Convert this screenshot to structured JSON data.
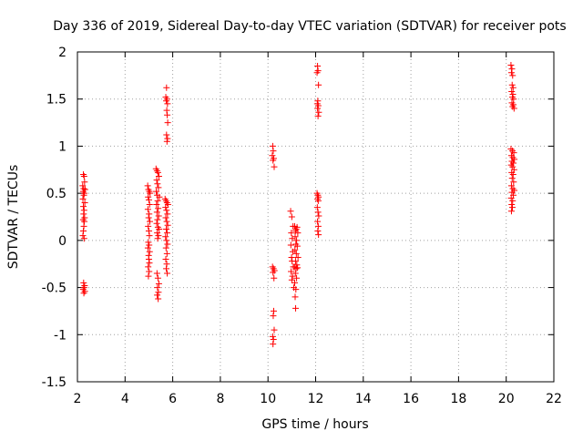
{
  "chart_data": {
    "type": "scatter",
    "title": "Day 336 of 2019, Sidereal Day-to-day VTEC variation (SDTVAR) for receiver pots",
    "xlabel": "GPS time / hours",
    "ylabel": "SDTVAR / TECUs",
    "xlim": [
      2,
      22
    ],
    "ylim": [
      -1.5,
      2
    ],
    "x_ticks": [
      2,
      4,
      6,
      8,
      10,
      12,
      14,
      16,
      18,
      20,
      22
    ],
    "y_ticks": [
      -1.5,
      -1,
      -0.5,
      0,
      0.5,
      1,
      1.5,
      2
    ],
    "x_tick_labels": [
      "2",
      "4",
      "6",
      "8",
      "10",
      "12",
      "14",
      "16",
      "18",
      "20",
      "22"
    ],
    "y_tick_labels": [
      "-1.5",
      "-1",
      "-0.5",
      "0",
      "0.5",
      "1",
      "1.5",
      "2"
    ],
    "grid": true,
    "marker": "plus",
    "series": [
      {
        "name": "SDTVAR",
        "color": "#ff0000",
        "points": [
          [
            2.25,
            0.7
          ],
          [
            2.28,
            0.68
          ],
          [
            2.3,
            0.62
          ],
          [
            2.22,
            0.58
          ],
          [
            2.26,
            0.55
          ],
          [
            2.32,
            0.54
          ],
          [
            2.24,
            0.52
          ],
          [
            2.29,
            0.5
          ],
          [
            2.27,
            0.48
          ],
          [
            2.23,
            0.44
          ],
          [
            2.31,
            0.4
          ],
          [
            2.25,
            0.36
          ],
          [
            2.28,
            0.32
          ],
          [
            2.26,
            0.28
          ],
          [
            2.3,
            0.24
          ],
          [
            2.24,
            0.22
          ],
          [
            2.29,
            0.2
          ],
          [
            2.27,
            0.15
          ],
          [
            2.25,
            0.1
          ],
          [
            2.23,
            0.05
          ],
          [
            2.28,
            0.02
          ],
          [
            2.26,
            -0.45
          ],
          [
            2.3,
            -0.48
          ],
          [
            2.28,
            -0.5
          ],
          [
            2.24,
            -0.52
          ],
          [
            2.31,
            -0.54
          ],
          [
            2.27,
            -0.56
          ],
          [
            4.95,
            0.58
          ],
          [
            4.98,
            0.54
          ],
          [
            5.02,
            0.52
          ],
          [
            5.05,
            0.5
          ],
          [
            4.97,
            0.46
          ],
          [
            5.0,
            0.43
          ],
          [
            5.03,
            0.38
          ],
          [
            4.96,
            0.33
          ],
          [
            5.01,
            0.28
          ],
          [
            4.99,
            0.24
          ],
          [
            5.04,
            0.2
          ],
          [
            4.97,
            0.15
          ],
          [
            5.0,
            0.1
          ],
          [
            5.02,
            0.05
          ],
          [
            4.98,
            -0.02
          ],
          [
            5.01,
            -0.05
          ],
          [
            4.96,
            -0.08
          ],
          [
            5.03,
            -0.12
          ],
          [
            4.99,
            -0.16
          ],
          [
            5.0,
            -0.2
          ],
          [
            5.02,
            -0.24
          ],
          [
            4.97,
            -0.28
          ],
          [
            5.01,
            -0.33
          ],
          [
            4.98,
            -0.38
          ],
          [
            5.3,
            0.76
          ],
          [
            5.34,
            0.74
          ],
          [
            5.38,
            0.72
          ],
          [
            5.42,
            0.68
          ],
          [
            5.33,
            0.64
          ],
          [
            5.36,
            0.6
          ],
          [
            5.4,
            0.56
          ],
          [
            5.31,
            0.52
          ],
          [
            5.35,
            0.48
          ],
          [
            5.44,
            0.46
          ],
          [
            5.37,
            0.42
          ],
          [
            5.32,
            0.38
          ],
          [
            5.39,
            0.34
          ],
          [
            5.34,
            0.3
          ],
          [
            5.41,
            0.26
          ],
          [
            5.36,
            0.22
          ],
          [
            5.33,
            0.18
          ],
          [
            5.38,
            0.14
          ],
          [
            5.43,
            0.12
          ],
          [
            5.35,
            0.08
          ],
          [
            5.4,
            0.05
          ],
          [
            5.37,
            0.02
          ],
          [
            5.34,
            -0.35
          ],
          [
            5.38,
            -0.4
          ],
          [
            5.42,
            -0.46
          ],
          [
            5.36,
            -0.5
          ],
          [
            5.4,
            -0.55
          ],
          [
            5.35,
            -0.58
          ],
          [
            5.39,
            -0.62
          ],
          [
            5.68,
            0.44
          ],
          [
            5.72,
            0.42
          ],
          [
            5.76,
            0.4
          ],
          [
            5.8,
            0.38
          ],
          [
            5.7,
            0.35
          ],
          [
            5.74,
            0.32
          ],
          [
            5.78,
            0.28
          ],
          [
            5.71,
            0.24
          ],
          [
            5.75,
            0.2
          ],
          [
            5.79,
            0.16
          ],
          [
            5.73,
            0.12
          ],
          [
            5.77,
            0.08
          ],
          [
            5.7,
            0.04
          ],
          [
            5.74,
            0.0
          ],
          [
            5.78,
            -0.04
          ],
          [
            5.72,
            -0.08
          ],
          [
            5.76,
            -0.14
          ],
          [
            5.71,
            -0.2
          ],
          [
            5.75,
            -0.25
          ],
          [
            5.73,
            -0.3
          ],
          [
            5.77,
            -0.35
          ],
          [
            5.74,
            1.62
          ],
          [
            5.71,
            1.52
          ],
          [
            5.76,
            1.5
          ],
          [
            5.73,
            1.48
          ],
          [
            5.78,
            1.45
          ],
          [
            5.75,
            1.38
          ],
          [
            5.77,
            1.33
          ],
          [
            5.79,
            1.25
          ],
          [
            5.74,
            1.12
          ],
          [
            5.78,
            1.08
          ],
          [
            5.76,
            1.05
          ],
          [
            10.2,
            1.0
          ],
          [
            10.22,
            0.95
          ],
          [
            10.18,
            0.9
          ],
          [
            10.24,
            0.87
          ],
          [
            10.21,
            0.85
          ],
          [
            10.26,
            0.78
          ],
          [
            10.19,
            -0.28
          ],
          [
            10.23,
            -0.3
          ],
          [
            10.27,
            -0.32
          ],
          [
            10.21,
            -0.34
          ],
          [
            10.25,
            -0.4
          ],
          [
            10.24,
            -0.75
          ],
          [
            10.22,
            -0.8
          ],
          [
            10.26,
            -0.95
          ],
          [
            10.2,
            -1.02
          ],
          [
            10.23,
            -1.05
          ],
          [
            10.21,
            -1.1
          ],
          [
            10.95,
            0.31
          ],
          [
            11.0,
            0.25
          ],
          [
            11.05,
            0.15
          ],
          [
            10.98,
            0.08
          ],
          [
            11.02,
            0.02
          ],
          [
            10.96,
            -0.05
          ],
          [
            11.04,
            -0.12
          ],
          [
            10.99,
            -0.18
          ],
          [
            11.01,
            -0.22
          ],
          [
            11.06,
            -0.28
          ],
          [
            10.97,
            -0.33
          ],
          [
            11.03,
            -0.38
          ],
          [
            11.0,
            -0.42
          ],
          [
            11.08,
            -0.5
          ],
          [
            11.12,
            0.15
          ],
          [
            11.15,
            0.1
          ],
          [
            11.18,
            0.12
          ],
          [
            11.22,
            0.14
          ],
          [
            11.25,
            0.08
          ],
          [
            11.14,
            0.04
          ],
          [
            11.2,
            0.0
          ],
          [
            11.17,
            -0.04
          ],
          [
            11.23,
            -0.06
          ],
          [
            11.13,
            -0.1
          ],
          [
            11.19,
            -0.14
          ],
          [
            11.26,
            -0.18
          ],
          [
            11.16,
            -0.22
          ],
          [
            11.21,
            -0.26
          ],
          [
            11.11,
            -0.28
          ],
          [
            11.18,
            -0.3
          ],
          [
            11.24,
            -0.29
          ],
          [
            11.15,
            -0.35
          ],
          [
            11.2,
            -0.4
          ],
          [
            11.12,
            -0.45
          ],
          [
            11.17,
            -0.52
          ],
          [
            11.14,
            -0.6
          ],
          [
            11.16,
            -0.72
          ],
          [
            12.08,
            1.85
          ],
          [
            12.1,
            1.8
          ],
          [
            12.06,
            1.78
          ],
          [
            12.12,
            1.65
          ],
          [
            12.09,
            1.48
          ],
          [
            12.07,
            1.45
          ],
          [
            12.11,
            1.43
          ],
          [
            12.08,
            1.4
          ],
          [
            12.13,
            1.36
          ],
          [
            12.1,
            1.32
          ],
          [
            12.06,
            0.5
          ],
          [
            12.09,
            0.48
          ],
          [
            12.12,
            0.46
          ],
          [
            12.08,
            0.44
          ],
          [
            12.11,
            0.42
          ],
          [
            12.07,
            0.35
          ],
          [
            12.1,
            0.3
          ],
          [
            12.13,
            0.26
          ],
          [
            12.08,
            0.2
          ],
          [
            12.11,
            0.15
          ],
          [
            12.09,
            0.1
          ],
          [
            12.12,
            0.06
          ],
          [
            20.2,
            1.86
          ],
          [
            20.24,
            1.82
          ],
          [
            20.22,
            1.78
          ],
          [
            20.27,
            1.75
          ],
          [
            20.25,
            1.65
          ],
          [
            20.29,
            1.62
          ],
          [
            20.23,
            1.58
          ],
          [
            20.28,
            1.55
          ],
          [
            20.26,
            1.52
          ],
          [
            20.31,
            1.5
          ],
          [
            20.24,
            1.46
          ],
          [
            20.3,
            1.44
          ],
          [
            20.27,
            1.42
          ],
          [
            20.33,
            1.4
          ],
          [
            20.2,
            0.97
          ],
          [
            20.26,
            0.95
          ],
          [
            20.32,
            0.93
          ],
          [
            20.22,
            0.9
          ],
          [
            20.28,
            0.88
          ],
          [
            20.34,
            0.86
          ],
          [
            20.24,
            0.84
          ],
          [
            20.3,
            0.82
          ],
          [
            20.21,
            0.8
          ],
          [
            20.27,
            0.78
          ],
          [
            20.33,
            0.75
          ],
          [
            20.23,
            0.72
          ],
          [
            20.29,
            0.7
          ],
          [
            20.25,
            0.66
          ],
          [
            20.31,
            0.62
          ],
          [
            20.22,
            0.58
          ],
          [
            20.28,
            0.55
          ],
          [
            20.34,
            0.53
          ],
          [
            20.24,
            0.51
          ],
          [
            20.3,
            0.48
          ],
          [
            20.21,
            0.45
          ],
          [
            20.27,
            0.42
          ],
          [
            20.23,
            0.38
          ],
          [
            20.26,
            0.35
          ],
          [
            20.22,
            0.31
          ]
        ]
      }
    ]
  }
}
